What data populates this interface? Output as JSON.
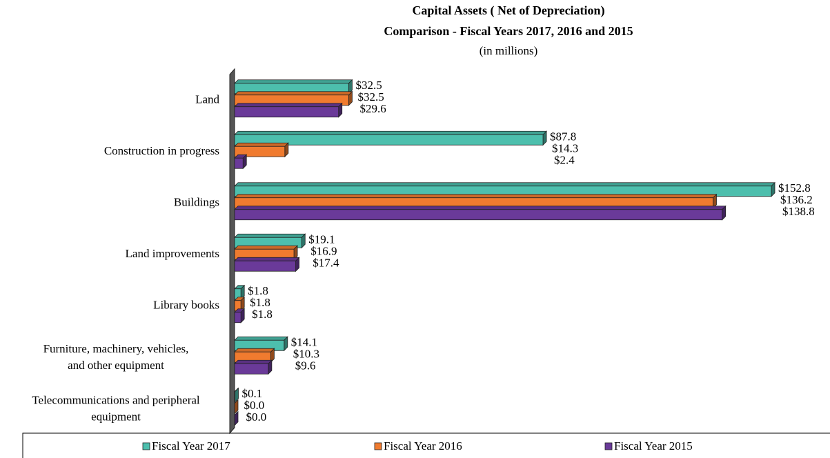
{
  "chart_data": {
    "type": "bar",
    "orientation": "horizontal",
    "title": "Capital Assets ( Net of Depreciation)",
    "subtitle": "Comparison - Fiscal Years 2017, 2016 and 2015",
    "units": "(in millions)",
    "categories": [
      "Land",
      "Construction in progress",
      "Buildings",
      "Land improvements",
      "Library books",
      "Furniture, machinery, vehicles, and other equipment",
      "Telecommunications and peripheral equipment"
    ],
    "series": [
      {
        "name": "Fiscal Year 2017",
        "color": "#4dbfad",
        "values": [
          32.5,
          87.8,
          152.8,
          19.1,
          1.8,
          14.1,
          0.1
        ],
        "value_labels": [
          "$32.5",
          "$87.8",
          "$152.8",
          "$19.1",
          "$1.8",
          "$14.1",
          "$0.1"
        ]
      },
      {
        "name": "Fiscal Year 2016",
        "color": "#f07b2f",
        "values": [
          32.5,
          14.3,
          136.2,
          16.9,
          1.8,
          10.3,
          0.0
        ],
        "value_labels": [
          "$32.5",
          "$14.3",
          "$136.2",
          "$16.9",
          "$1.8",
          "$10.3",
          "$0.0"
        ]
      },
      {
        "name": "Fiscal Year 2015",
        "color": "#6a3a99",
        "values": [
          29.6,
          2.4,
          138.8,
          17.4,
          1.8,
          9.6,
          0.0
        ],
        "value_labels": [
          "$29.6",
          "$2.4",
          "$138.8",
          "$17.4",
          "$1.8",
          "$9.6",
          "$0.0"
        ]
      }
    ],
    "legend": "bottom"
  }
}
